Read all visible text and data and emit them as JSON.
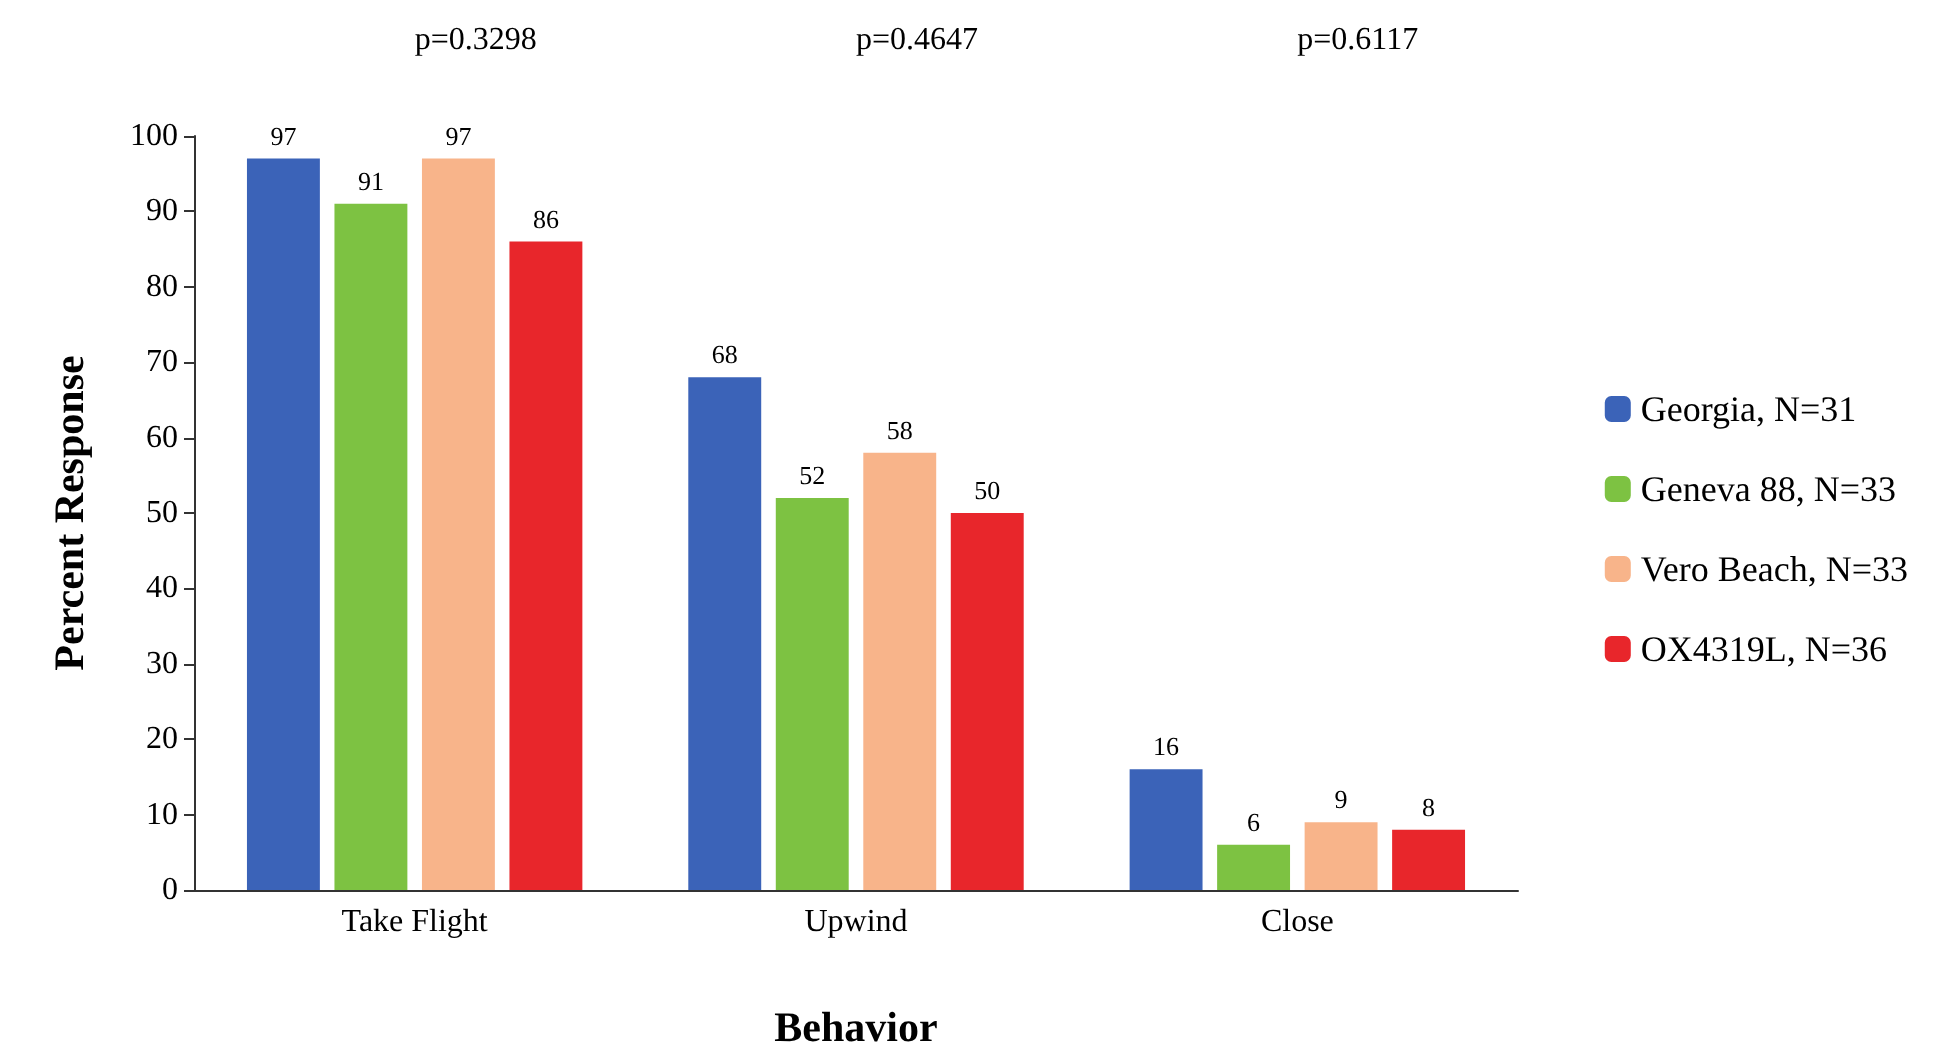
{
  "chart_data": {
    "type": "bar",
    "xlabel": "Behavior",
    "ylabel": "Percent Response",
    "categories": [
      "Take Flight",
      "Upwind",
      "Close"
    ],
    "series": [
      {
        "name": "Georgia, N=31",
        "color": "#3b63b8",
        "values": [
          97,
          68,
          16
        ]
      },
      {
        "name": "Geneva 88, N=33",
        "color": "#7dc242",
        "values": [
          91,
          52,
          6
        ]
      },
      {
        "name": "Vero Beach, N=33",
        "color": "#f8b48a",
        "values": [
          97,
          58,
          9
        ]
      },
      {
        "name": "OX4319L, N=36",
        "color": "#e8262b",
        "values": [
          86,
          50,
          8
        ]
      }
    ],
    "annotations": [
      "p=0.3298",
      "p=0.4647",
      "p=0.6117"
    ],
    "ylim": [
      0,
      100
    ],
    "yticks": [
      0,
      10,
      20,
      30,
      40,
      50,
      60,
      70,
      80,
      90,
      100
    ],
    "data_labels": true,
    "grid": false,
    "legend": "right"
  }
}
